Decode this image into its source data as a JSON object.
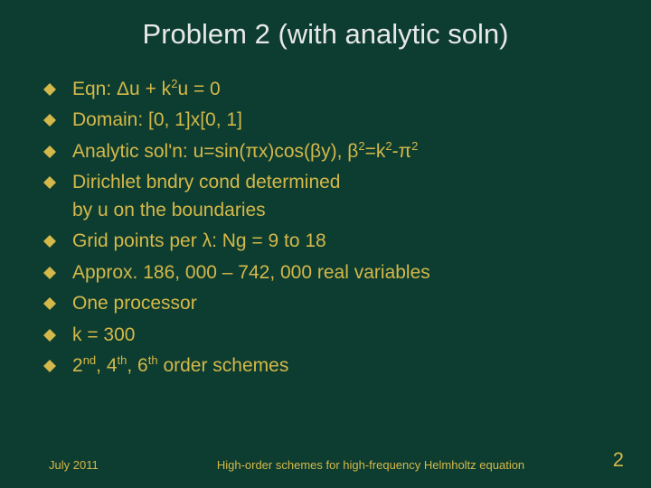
{
  "title": "Problem 2 (with analytic soln)",
  "colors": {
    "background": "#0d3d30",
    "title_text": "#e8e8e8",
    "body_text": "#d4b84a",
    "bullet_fill": "#d4b84a"
  },
  "typography": {
    "title_fontsize": 31,
    "body_fontsize": 21,
    "footer_fontsize": 13,
    "pagenum_fontsize": 22,
    "title_family": "Arial",
    "body_family": "Verdana"
  },
  "bullets": [
    {
      "html": "Eqn: Δu + k<span class='sup'>2</span>u = 0"
    },
    {
      "html": "Domain: [0, 1]x[0, 1]"
    },
    {
      "html": "Analytic sol'n: u=sin(πx)cos(βy), β<span class='sup'>2</span>=k<span class='sup'>2</span>-π<span class='sup'>2</span>"
    },
    {
      "html": "Dirichlet bndry cond determined<br>by u on the boundaries"
    },
    {
      "html": "Grid points per λ: Ng = 9 to 18"
    },
    {
      "html": "Approx. 186, 000 – 742, 000 real variables"
    },
    {
      "html": "One processor"
    },
    {
      "html": "k = 300"
    },
    {
      "html": "2<span class='sup'>nd</span>, 4<span class='sup'>th</span>, 6<span class='sup'>th</span> order schemes"
    }
  ],
  "footer": {
    "left": "July 2011",
    "center": "High-order schemes for high-frequency Helmholtz equation",
    "page": "2"
  }
}
